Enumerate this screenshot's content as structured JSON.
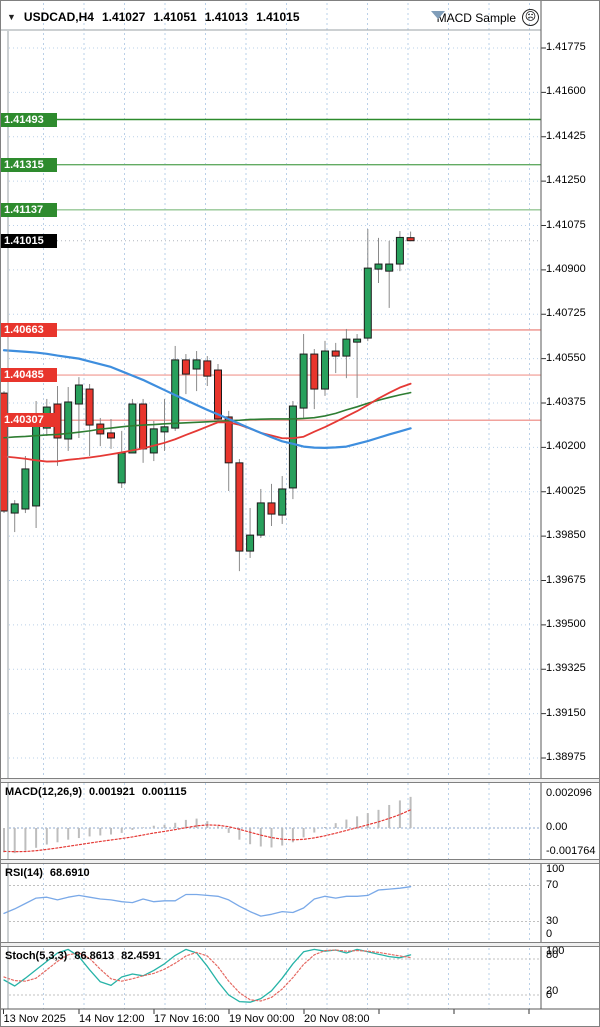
{
  "title_bar": {
    "dropdown": "▼",
    "symbol": "USDCAD,H4",
    "open": "1.41027",
    "high": "1.41051",
    "low": "1.41013",
    "close": "1.41015",
    "badge": "MACD Sample",
    "badge_icon": "sad-face"
  },
  "colors": {
    "bull": "#28a05c",
    "bear": "#e8352c",
    "candle_outline": "#1c1c1c",
    "wick": "#8a8a8a",
    "grid": "#bad0e8",
    "ma_blue": "#3e8ede",
    "ma_red": "#e53935",
    "ma_green": "#2e7d32",
    "macd_hist": "#bdbdbd",
    "macd_signal": "#e53935",
    "rsi_line": "#7aa9e8",
    "stoch_k": "#26b3a7",
    "stoch_d": "#e56a63",
    "indicator_level": "#c0c0c0",
    "bid_line": "#b0b6be",
    "bid_box": "#000000"
  },
  "chart_data": {
    "type": "candlestick",
    "symbol": "USDCAD",
    "timeframe": "H4",
    "price_axis": {
      "max": 1.41775,
      "min": 1.38975,
      "tick_labels": [
        "1.41775",
        "1.41600",
        "1.41425",
        "1.41250",
        "1.41075",
        "1.40900",
        "1.40725",
        "1.40550",
        "1.40375",
        "1.40200",
        "1.40025",
        "1.39850",
        "1.39675",
        "1.39500",
        "1.39325",
        "1.39150",
        "1.38975"
      ]
    },
    "time_axis": {
      "tick_labels": [
        "13 Nov 2025",
        "14 Nov 12:00",
        "17 Nov 16:00",
        "19 Nov 00:00",
        "20 Nov 08:00"
      ]
    },
    "bid": {
      "price": 1.41015,
      "label": "1.41015"
    },
    "levels": [
      {
        "price": 1.41493,
        "label": "1.41493",
        "line_color": "#2d8b2d",
        "box_color": "#2e8b2e"
      },
      {
        "price": 1.41315,
        "label": "1.41315",
        "line_color": "#63ab63",
        "box_color": "#2e8b2e"
      },
      {
        "price": 1.41137,
        "label": "1.41137",
        "line_color": "#95c795",
        "box_color": "#2e8b2e"
      },
      {
        "price": 1.40663,
        "label": "1.40663",
        "line_color": "#ee8f89",
        "box_color": "#e8352c"
      },
      {
        "price": 1.40485,
        "label": "1.40485",
        "line_color": "#f4aaa4",
        "box_color": "#e8352c"
      },
      {
        "price": 1.40307,
        "label": "1.40307",
        "line_color": "#f1a29c",
        "box_color": "#e8352c"
      }
    ],
    "candles_ohlc": [
      [
        1.40414,
        1.40422,
        1.39941,
        1.39949
      ],
      [
        1.39941,
        1.39992,
        1.39866,
        1.39977
      ],
      [
        1.39957,
        1.40166,
        1.39941,
        1.40115
      ],
      [
        1.39969,
        1.40383,
        1.39882,
        1.40324
      ],
      [
        1.40276,
        1.40391,
        1.40245,
        1.40359
      ],
      [
        1.40371,
        1.40442,
        1.40127,
        1.40237
      ],
      [
        1.40233,
        1.40438,
        1.40186,
        1.40379
      ],
      [
        1.40371,
        1.40477,
        1.40237,
        1.40446
      ],
      [
        1.4043,
        1.4045,
        1.40166,
        1.40288
      ],
      [
        1.40292,
        1.40316,
        1.40205,
        1.40253
      ],
      [
        1.40257,
        1.40312,
        1.40194,
        1.40237
      ],
      [
        1.4006,
        1.40265,
        1.4004,
        1.40178
      ],
      [
        1.40178,
        1.40391,
        1.40178,
        1.40371
      ],
      [
        1.40371,
        1.40391,
        1.40139,
        1.40194
      ],
      [
        1.40178,
        1.40304,
        1.40146,
        1.40273
      ],
      [
        1.40261,
        1.40391,
        1.40186,
        1.40281
      ],
      [
        1.40276,
        1.406,
        1.40265,
        1.40545
      ],
      [
        1.40545,
        1.40568,
        1.4041,
        1.40489
      ],
      [
        1.40509,
        1.4058,
        1.40422,
        1.40545
      ],
      [
        1.40541,
        1.4056,
        1.40442,
        1.40481
      ],
      [
        1.40505,
        1.40529,
        1.403,
        1.40312
      ],
      [
        1.4032,
        1.40344,
        1.40028,
        1.40139
      ],
      [
        1.40139,
        1.40154,
        1.39712,
        1.39791
      ],
      [
        1.39791,
        1.39961,
        1.39764,
        1.39854
      ],
      [
        1.39854,
        1.40036,
        1.39843,
        1.39981
      ],
      [
        1.39981,
        1.40056,
        1.3989,
        1.39937
      ],
      [
        1.39933,
        1.40087,
        1.39898,
        1.40036
      ],
      [
        1.4004,
        1.40383,
        1.39996,
        1.40363
      ],
      [
        1.40355,
        1.40647,
        1.40312,
        1.40568
      ],
      [
        1.40568,
        1.40588,
        1.40351,
        1.4043
      ],
      [
        1.4043,
        1.4062,
        1.40403,
        1.4058
      ],
      [
        1.4058,
        1.40612,
        1.40493,
        1.4056
      ],
      [
        1.4056,
        1.40667,
        1.40473,
        1.40627
      ],
      [
        1.40615,
        1.40647,
        1.40395,
        1.40627
      ],
      [
        1.40631,
        1.41061,
        1.40619,
        1.40907
      ],
      [
        1.40903,
        1.41026,
        1.40848,
        1.40923
      ],
      [
        1.40895,
        1.41014,
        1.4075,
        1.40923
      ],
      [
        1.40923,
        1.41053,
        1.40895,
        1.41028
      ],
      [
        1.41027,
        1.41051,
        1.41013,
        1.41015
      ]
    ],
    "moving_averages": {
      "blue": [
        1.40583,
        1.4058,
        1.40577,
        1.40574,
        1.40569,
        1.40562,
        1.40556,
        1.4055,
        1.40539,
        1.40528,
        1.40517,
        1.405,
        1.40483,
        1.40466,
        1.40446,
        1.40426,
        1.40406,
        1.40387,
        1.40367,
        1.40348,
        1.4033,
        1.40312,
        1.40293,
        1.40275,
        1.40257,
        1.4024,
        1.40224,
        1.40214,
        1.40203,
        1.40199,
        1.40198,
        1.402,
        1.40203,
        1.40214,
        1.40225,
        1.40238,
        1.40251,
        1.40263,
        1.40275
      ],
      "red": [
        1.40164,
        1.4016,
        1.40155,
        1.40149,
        1.40144,
        1.40145,
        1.40151,
        1.40155,
        1.4016,
        1.40166,
        1.40173,
        1.4018,
        1.40188,
        1.40196,
        1.40207,
        1.40218,
        1.40232,
        1.40249,
        1.40265,
        1.40282,
        1.40299,
        1.40298,
        1.40289,
        1.40274,
        1.40257,
        1.40247,
        1.40236,
        1.40236,
        1.40242,
        1.40262,
        1.4028,
        1.40301,
        1.40322,
        1.40343,
        1.40367,
        1.40393,
        1.40415,
        1.40436,
        1.40451
      ],
      "green": [
        1.40238,
        1.40241,
        1.40243,
        1.40246,
        1.40249,
        1.40251,
        1.40255,
        1.4026,
        1.40265,
        1.40272,
        1.40276,
        1.40281,
        1.40285,
        1.40288,
        1.4029,
        1.40293,
        1.40295,
        1.40297,
        1.40299,
        1.40301,
        1.40303,
        1.40305,
        1.40307,
        1.4031,
        1.40311,
        1.40312,
        1.40312,
        1.40312,
        1.40314,
        1.40317,
        1.40324,
        1.40334,
        1.40348,
        1.4036,
        1.40374,
        1.40386,
        1.40397,
        1.40407,
        1.40416
      ]
    },
    "indicators": {
      "macd": {
        "name": "MACD(12,26,9)",
        "value_main": "0.001921",
        "value_signal": "0.001115",
        "axis_labels": [
          "0.002096",
          "0.00",
          "-0.001764"
        ],
        "axis_max": 0.002096,
        "axis_min": -0.001764,
        "histogram": [
          -0.0015,
          -0.00155,
          -0.0014,
          -0.00122,
          -0.00102,
          -0.00088,
          -0.00072,
          -0.00062,
          -0.00052,
          -0.00046,
          -0.0004,
          -0.0003,
          -0.00012,
          4e-05,
          0.00014,
          0.0002,
          0.00032,
          0.0005,
          0.00058,
          0.00042,
          0.0001,
          -0.0003,
          -0.00072,
          -0.001,
          -0.00114,
          -0.0012,
          -0.00108,
          -0.00088,
          -0.00058,
          -0.00028,
          6e-05,
          0.0003,
          0.00052,
          0.00072,
          0.00092,
          0.00112,
          0.00142,
          0.0017,
          0.00192
        ],
        "signal": [
          -0.00144,
          -0.00146,
          -0.00145,
          -0.0014,
          -0.00132,
          -0.00123,
          -0.00113,
          -0.00103,
          -0.00093,
          -0.00083,
          -0.00074,
          -0.00065,
          -0.00055,
          -0.00043,
          -0.00031,
          -0.00021,
          -0.0001,
          2e-05,
          0.00013,
          0.00019,
          0.00017,
          8e-05,
          -8e-05,
          -0.00026,
          -0.00044,
          -0.00059,
          -0.00069,
          -0.00073,
          -0.0007,
          -0.00061,
          -0.00048,
          -0.00032,
          -0.00015,
          2e-05,
          0.0002,
          0.00038,
          0.00059,
          0.00083,
          0.00112
        ]
      },
      "rsi": {
        "name": "RSI(14)",
        "value": "68.6910",
        "axis_labels": [
          "100",
          "70",
          "30",
          "0"
        ],
        "levels": [
          70,
          30
        ],
        "values": [
          39,
          44,
          50,
          56,
          57,
          54,
          57,
          59,
          57,
          55,
          54,
          52,
          51,
          55,
          52,
          53,
          53,
          60,
          60,
          59,
          58,
          54,
          47,
          41,
          36,
          38,
          41,
          40,
          45,
          55,
          58,
          56,
          58,
          58,
          59,
          65,
          66,
          67,
          68.7
        ]
      },
      "stoch": {
        "name": "Stoch(5,3,3)",
        "value_k": "86.8613",
        "value_d": "82.4591",
        "axis_labels": [
          "100",
          "80",
          "20",
          "0"
        ],
        "levels": [
          80,
          20
        ],
        "k": [
          45,
          35,
          48,
          62,
          76,
          90,
          96,
          84,
          62,
          42,
          36,
          50,
          55,
          52,
          61,
          72,
          86,
          96,
          90,
          68,
          42,
          20,
          9,
          8,
          14,
          27,
          48,
          72,
          92,
          96,
          93,
          95,
          90,
          96,
          92,
          88,
          84,
          82,
          86.9
        ],
        "d": [
          50,
          44,
          43,
          48,
          62,
          76,
          87,
          90,
          81,
          63,
          47,
          43,
          47,
          52,
          56,
          63,
          73,
          85,
          91,
          85,
          67,
          43,
          24,
          12,
          10,
          16,
          30,
          49,
          71,
          87,
          94,
          95,
          93,
          94,
          93,
          91,
          88,
          85,
          82.5
        ]
      }
    }
  }
}
